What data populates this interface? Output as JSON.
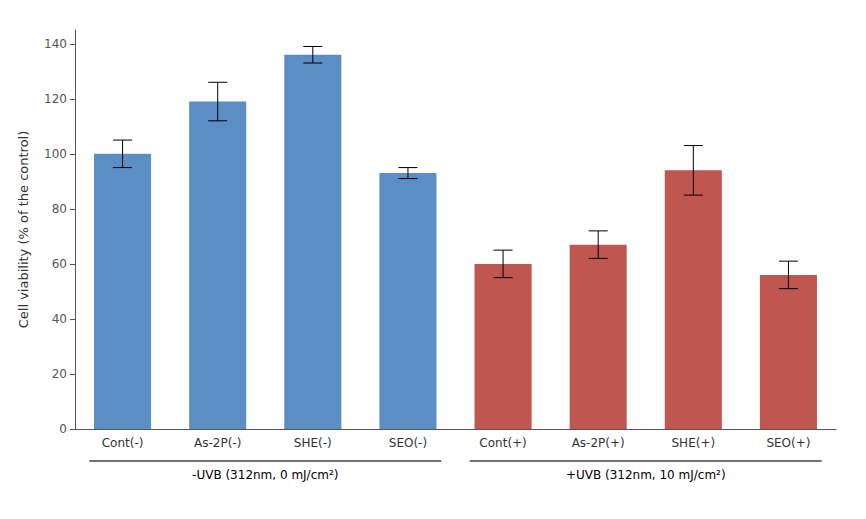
{
  "chart_data": {
    "type": "bar",
    "categories": [
      "Cont(-)",
      "As-2P(-)",
      "SHE(-)",
      "SEO(-)",
      "Cont(+)",
      "As-2P(+)",
      "SHE(+)",
      "SEO(+)"
    ],
    "values": [
      100,
      119,
      136,
      93,
      60,
      67,
      94,
      56
    ],
    "errors": [
      5,
      7,
      3,
      2,
      5,
      5,
      9,
      5
    ],
    "colors": [
      "#5b8ec4",
      "#5b8ec4",
      "#5b8ec4",
      "#5b8ec4",
      "#bf5650",
      "#bf5650",
      "#bf5650",
      "#bf5650"
    ],
    "ylabel": "Cell viability (% of the control)",
    "ylim": [
      0,
      145
    ],
    "yticks": [
      0,
      20,
      40,
      60,
      80,
      100,
      120,
      140
    ],
    "annotations": [
      "-UVB (312nm, 0 mJ/cm²)",
      "+UVB (312nm, 10 mJ/cm²)"
    ],
    "grid": false
  }
}
